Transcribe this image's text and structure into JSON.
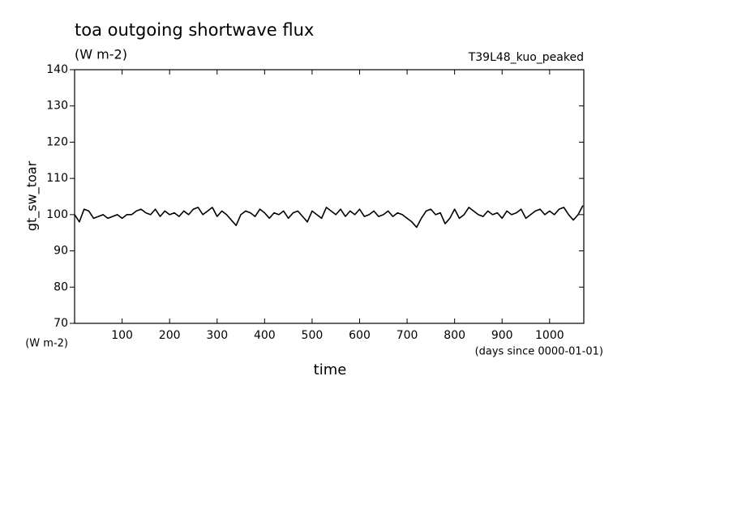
{
  "chart_data": {
    "type": "line",
    "title": "toa outgoing shortwave flux",
    "subtitle": "(W m-2)",
    "annotation": "T39L48_kuo_peaked",
    "y_label": "gt_sw_toar",
    "y_unit": "(W m-2)",
    "x_label": "time",
    "x_unit": "(days since 0000-01-01)",
    "x": [
      0,
      10,
      20,
      30,
      40,
      50,
      60,
      70,
      80,
      90,
      100,
      110,
      120,
      130,
      140,
      150,
      160,
      170,
      180,
      190,
      200,
      210,
      220,
      230,
      240,
      250,
      260,
      270,
      280,
      290,
      300,
      310,
      320,
      330,
      340,
      350,
      360,
      370,
      380,
      390,
      400,
      410,
      420,
      430,
      440,
      450,
      460,
      470,
      480,
      490,
      500,
      510,
      520,
      530,
      540,
      550,
      560,
      570,
      580,
      590,
      600,
      610,
      620,
      630,
      640,
      650,
      660,
      670,
      680,
      690,
      700,
      710,
      720,
      730,
      740,
      750,
      760,
      770,
      780,
      790,
      800,
      810,
      820,
      830,
      840,
      850,
      860,
      870,
      880,
      890,
      900,
      910,
      920,
      930,
      940,
      950,
      960,
      970,
      980,
      990,
      1000,
      1010,
      1020,
      1030,
      1040,
      1050,
      1060,
      1070
    ],
    "series": [
      {
        "name": "gt_sw_toar",
        "color": "#000000",
        "values": [
          100,
          98,
          101.5,
          101,
          99,
          99.5,
          100,
          99,
          99.5,
          100,
          99,
          100,
          100,
          101,
          101.5,
          100.5,
          100,
          101.5,
          99.5,
          101,
          100,
          100.5,
          99.5,
          101,
          100,
          101.5,
          102,
          100,
          101,
          102,
          99.5,
          101,
          100,
          98.5,
          97,
          100,
          101,
          100.5,
          99.5,
          101.5,
          100.5,
          99,
          100.5,
          100,
          101,
          99,
          100.5,
          101,
          99.5,
          98,
          101,
          100,
          99,
          102,
          101,
          100,
          101.5,
          99.5,
          101,
          100,
          101.5,
          99.5,
          100,
          101,
          99.5,
          100,
          101,
          99.5,
          100.5,
          100,
          99,
          98,
          96.5,
          99,
          101,
          101.5,
          100,
          100.5,
          97.5,
          99,
          101.5,
          99,
          100,
          102,
          101,
          100,
          99.5,
          101,
          100,
          100.5,
          99,
          101,
          100,
          100.5,
          101.5,
          99,
          100,
          101,
          101.5,
          100,
          101,
          100,
          101.5,
          102,
          100,
          98.5,
          100,
          102.5
        ]
      }
    ],
    "xlim": [
      0,
      1072
    ],
    "ylim": [
      70,
      140
    ],
    "xticks": [
      100,
      200,
      300,
      400,
      500,
      600,
      700,
      800,
      900,
      1000
    ],
    "yticks": [
      70,
      80,
      90,
      100,
      110,
      120,
      130,
      140
    ]
  }
}
